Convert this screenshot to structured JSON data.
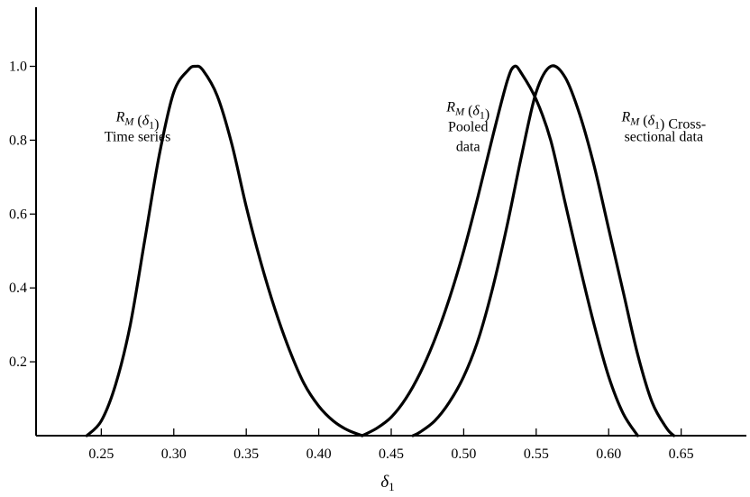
{
  "chart_data": {
    "type": "line",
    "title": "",
    "xlabel": "δ",
    "xlabel_sub": "1",
    "ylabel": "",
    "xlim": [
      0.205,
      0.695
    ],
    "ylim": [
      0,
      1.16
    ],
    "x_ticks": [
      0.25,
      0.3,
      0.35,
      0.4,
      0.45,
      0.5,
      0.55,
      0.6,
      0.65
    ],
    "x_tick_labels": [
      "0.25",
      "0.30",
      "0.35",
      "0.40",
      "0.45",
      "0.50",
      "0.55",
      "0.60",
      "0.65"
    ],
    "y_ticks": [
      0.2,
      0.4,
      0.6,
      0.8,
      1.0
    ],
    "y_tick_labels": [
      "0.2",
      "0.4",
      "0.6",
      "0.8",
      "1.0"
    ],
    "grid": false,
    "legend": "none",
    "series": [
      {
        "x": [
          0.24,
          0.25,
          0.26,
          0.27,
          0.28,
          0.29,
          0.3,
          0.31,
          0.315,
          0.32,
          0.33,
          0.34,
          0.35,
          0.36,
          0.37,
          0.38,
          0.39,
          0.4,
          0.41,
          0.42,
          0.43
        ],
        "values": [
          0.0,
          0.04,
          0.14,
          0.3,
          0.53,
          0.76,
          0.93,
          0.99,
          1.0,
          0.99,
          0.92,
          0.79,
          0.62,
          0.47,
          0.34,
          0.23,
          0.14,
          0.08,
          0.04,
          0.015,
          0.0
        ]
      },
      {
        "x": [
          0.43,
          0.44,
          0.45,
          0.46,
          0.47,
          0.48,
          0.49,
          0.5,
          0.51,
          0.52,
          0.53,
          0.535,
          0.54,
          0.55,
          0.56,
          0.57,
          0.58,
          0.59,
          0.6,
          0.61,
          0.62
        ],
        "values": [
          0.0,
          0.02,
          0.05,
          0.1,
          0.17,
          0.26,
          0.37,
          0.5,
          0.65,
          0.81,
          0.96,
          1.0,
          0.98,
          0.91,
          0.8,
          0.63,
          0.46,
          0.3,
          0.16,
          0.06,
          0.0
        ]
      },
      {
        "x": [
          0.465,
          0.47,
          0.48,
          0.49,
          0.5,
          0.51,
          0.52,
          0.53,
          0.54,
          0.55,
          0.56,
          0.57,
          0.58,
          0.59,
          0.6,
          0.61,
          0.62,
          0.63,
          0.64,
          0.645
        ],
        "values": [
          0.0,
          0.01,
          0.04,
          0.09,
          0.16,
          0.26,
          0.4,
          0.57,
          0.76,
          0.93,
          1.0,
          0.97,
          0.87,
          0.73,
          0.56,
          0.39,
          0.22,
          0.09,
          0.02,
          0.0
        ]
      }
    ],
    "annotations": [
      {
        "name": "time-series",
        "lines": [
          "R_M (δ_1)",
          "Time series"
        ],
        "x": 0.275,
        "y": 0.8
      },
      {
        "name": "pooled",
        "lines": [
          "R_M (δ_1)",
          "Pooled",
          "data"
        ],
        "x": 0.503,
        "y": 0.8
      },
      {
        "name": "cross-sectional",
        "lines": [
          "R_M (δ_1) Cross-",
          "sectional data"
        ],
        "x": 0.638,
        "y": 0.8
      }
    ]
  }
}
